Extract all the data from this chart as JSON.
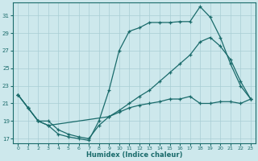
{
  "xlabel": "Humidex (Indice chaleur)",
  "background_color": "#cde8ec",
  "grid_color": "#a8cdd4",
  "line_color": "#1a6b6b",
  "xlim": [
    -0.5,
    23.5
  ],
  "ylim": [
    16.5,
    32.5
  ],
  "xticks": [
    0,
    1,
    2,
    3,
    4,
    5,
    6,
    7,
    8,
    9,
    10,
    11,
    12,
    13,
    14,
    15,
    16,
    17,
    18,
    19,
    20,
    21,
    22,
    23
  ],
  "yticks": [
    17,
    19,
    21,
    23,
    25,
    27,
    29,
    31
  ],
  "line1_x": [
    0,
    1,
    2,
    3,
    4,
    5,
    6,
    7,
    8,
    9,
    10,
    11,
    12,
    13,
    14,
    15,
    16,
    17,
    18,
    19,
    20,
    21,
    22,
    23
  ],
  "line1_y": [
    22.0,
    20.5,
    19.0,
    18.5,
    17.5,
    17.2,
    17.0,
    16.8,
    19.0,
    22.5,
    27.0,
    29.2,
    29.6,
    30.2,
    30.2,
    30.2,
    30.3,
    30.3,
    32.0,
    30.8,
    28.5,
    25.5,
    23.0,
    21.5
  ],
  "line2_x": [
    0,
    1,
    2,
    3,
    9,
    10,
    11,
    12,
    13,
    14,
    15,
    16,
    17,
    18,
    19,
    20,
    21,
    22,
    23
  ],
  "line2_y": [
    22.0,
    20.5,
    19.0,
    18.5,
    19.5,
    20.2,
    21.0,
    21.8,
    22.5,
    23.5,
    24.5,
    25.5,
    26.5,
    28.0,
    28.5,
    27.5,
    26.0,
    23.5,
    21.5
  ],
  "line3_x": [
    0,
    1,
    2,
    3,
    4,
    5,
    6,
    7,
    8,
    9,
    10,
    11,
    12,
    13,
    14,
    15,
    16,
    17,
    18,
    19,
    20,
    21,
    22,
    23
  ],
  "line3_y": [
    22.0,
    20.5,
    19.0,
    19.0,
    18.0,
    17.5,
    17.2,
    17.0,
    18.5,
    19.5,
    20.0,
    20.5,
    20.8,
    21.0,
    21.2,
    21.5,
    21.5,
    21.8,
    21.0,
    21.0,
    21.2,
    21.2,
    21.0,
    21.5
  ]
}
